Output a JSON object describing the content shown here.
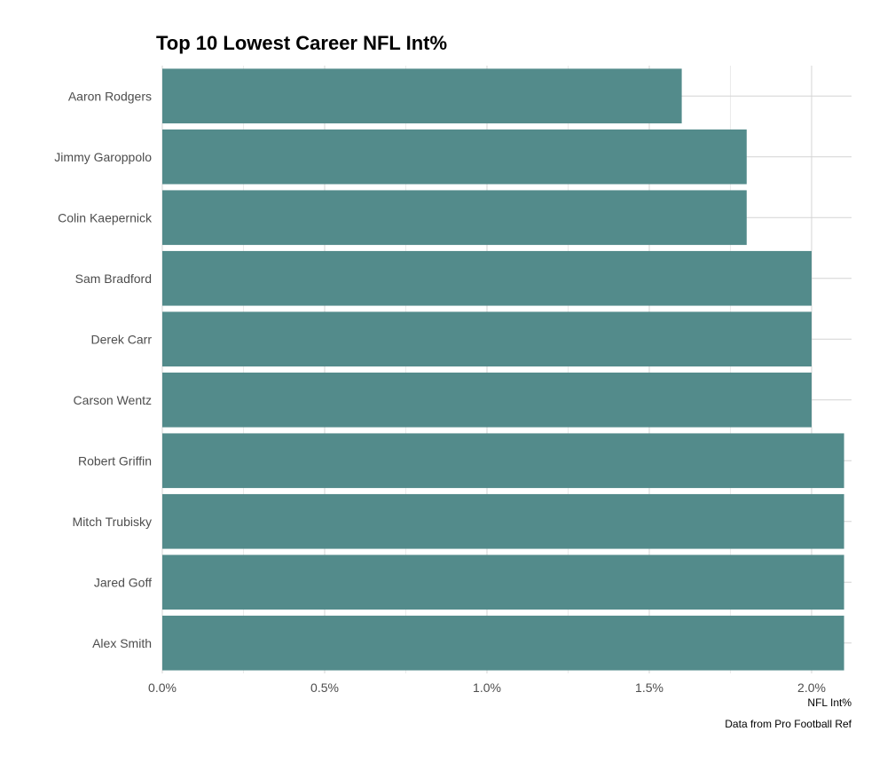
{
  "chart_data": {
    "type": "bar",
    "orientation": "horizontal",
    "title": "Top 10 Lowest Career NFL Int%",
    "xlabel": "NFL Int%",
    "ylabel": "",
    "caption": "Data from Pro Football Ref",
    "categories": [
      "Aaron Rodgers",
      "Jimmy Garoppolo",
      "Colin Kaepernick",
      "Sam Bradford",
      "Derek Carr",
      "Carson Wentz",
      "Robert Griffin",
      "Mitch Trubisky",
      "Jared Goff",
      "Alex Smith"
    ],
    "values": [
      1.6,
      1.8,
      1.8,
      2.0,
      2.0,
      2.0,
      2.1,
      2.1,
      2.1,
      2.1
    ],
    "xlim": [
      0,
      2.1
    ],
    "xticks": [
      0,
      0.5,
      1.0,
      1.5,
      2.0
    ],
    "xtick_labels": [
      "0.0%",
      "0.5%",
      "1.0%",
      "1.5%",
      "2.0%"
    ],
    "bar_color": "#538b8b",
    "grid": true,
    "legend": false
  }
}
